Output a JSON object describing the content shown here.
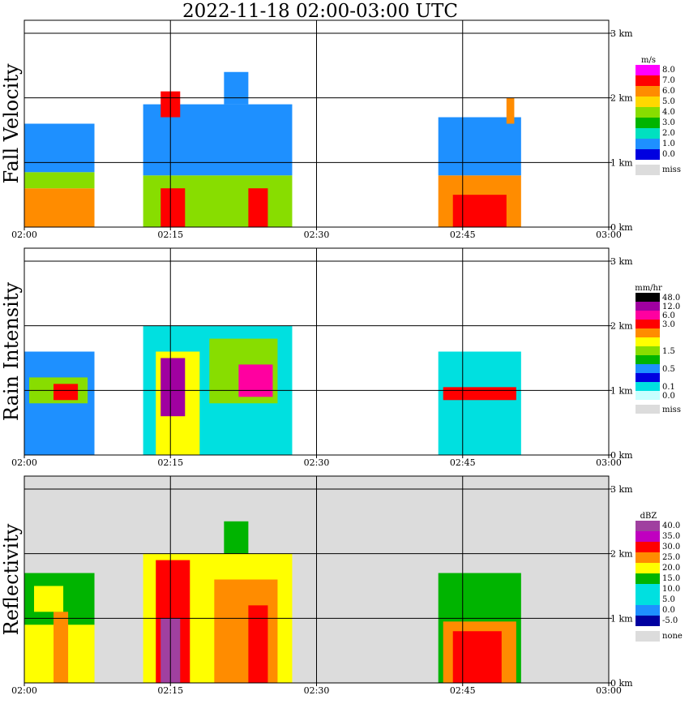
{
  "title": "2022-11-18   02:00-03:00 UTC",
  "chart_data": [
    {
      "type": "heatmap",
      "ylabel": "Fall Velocity",
      "unit": "m/s",
      "x_ticks": [
        "02:00",
        "02:15",
        "02:30",
        "02:45",
        "03:00"
      ],
      "y_ticks": [
        "0 km",
        "1 km",
        "2 km",
        "3 km"
      ],
      "xlim_minutes": [
        0,
        60
      ],
      "ylim_km": [
        0,
        3.2
      ],
      "missing_color": "#dcdcdc",
      "background": "#ffffff",
      "legend": [
        {
          "label": "8.0",
          "color": "#ff00ff"
        },
        {
          "label": "7.0",
          "color": "#ff0000"
        },
        {
          "label": "6.0",
          "color": "#ff8c00"
        },
        {
          "label": "5.0",
          "color": "#ffd800"
        },
        {
          "label": "4.0",
          "color": "#88dd00"
        },
        {
          "label": "3.0",
          "color": "#00b400"
        },
        {
          "label": "2.0",
          "color": "#00e0c0"
        },
        {
          "label": "1.0",
          "color": "#1e90ff"
        },
        {
          "label": "0.0",
          "color": "#0000e0"
        },
        {
          "label": "miss",
          "color": "#dcdcdc"
        }
      ],
      "regions": [
        {
          "t0": 0,
          "t1": 7.2,
          "z0": 0.0,
          "z1": 0.6,
          "color": "#ff8c00"
        },
        {
          "t0": 0,
          "t1": 7.2,
          "z0": 0.6,
          "z1": 0.85,
          "color": "#88dd00"
        },
        {
          "t0": 0,
          "t1": 7.2,
          "z0": 0.85,
          "z1": 1.6,
          "color": "#1e90ff"
        },
        {
          "t0": 12.2,
          "t1": 27.5,
          "z0": 0.0,
          "z1": 0.8,
          "color": "#88dd00"
        },
        {
          "t0": 14.0,
          "t1": 16.5,
          "z0": 0.0,
          "z1": 0.6,
          "color": "#ff0000"
        },
        {
          "t0": 23.0,
          "t1": 25.0,
          "z0": 0.0,
          "z1": 0.6,
          "color": "#ff0000"
        },
        {
          "t0": 12.2,
          "t1": 27.5,
          "z0": 0.8,
          "z1": 1.9,
          "color": "#1e90ff"
        },
        {
          "t0": 14.0,
          "t1": 16.0,
          "z0": 1.7,
          "z1": 2.1,
          "color": "#ff0000"
        },
        {
          "t0": 20.5,
          "t1": 23.0,
          "z0": 1.9,
          "z1": 2.4,
          "color": "#1e90ff"
        },
        {
          "t0": 42.5,
          "t1": 51.0,
          "z0": 0.0,
          "z1": 0.8,
          "color": "#ff8c00"
        },
        {
          "t0": 44.0,
          "t1": 49.5,
          "z0": 0.0,
          "z1": 0.5,
          "color": "#ff0000"
        },
        {
          "t0": 42.5,
          "t1": 51.0,
          "z0": 0.8,
          "z1": 1.7,
          "color": "#1e90ff"
        },
        {
          "t0": 49.5,
          "t1": 50.3,
          "z0": 1.6,
          "z1": 2.0,
          "color": "#ff8c00"
        }
      ]
    },
    {
      "type": "heatmap",
      "ylabel": "Rain Intensity",
      "unit": "mm/hr",
      "x_ticks": [
        "02:00",
        "02:15",
        "02:30",
        "02:45",
        "03:00"
      ],
      "y_ticks": [
        "0 km",
        "1 km",
        "2 km",
        "3 km"
      ],
      "xlim_minutes": [
        0,
        60
      ],
      "ylim_km": [
        0,
        3.2
      ],
      "missing_color": "#dcdcdc",
      "background": "#ffffff",
      "legend": [
        {
          "label": "48.0",
          "color": "#000000"
        },
        {
          "label": "12.0",
          "color": "#a000a0"
        },
        {
          "label": "6.0",
          "color": "#ff00a0"
        },
        {
          "label": "3.0",
          "color": "#ff0000"
        },
        {
          "label": "",
          "color": "#ff8c00"
        },
        {
          "label": "",
          "color": "#ffff00"
        },
        {
          "label": "1.5",
          "color": "#88dd00"
        },
        {
          "label": "",
          "color": "#00b400"
        },
        {
          "label": "0.5",
          "color": "#1e90ff"
        },
        {
          "label": "",
          "color": "#0000e0"
        },
        {
          "label": "0.1",
          "color": "#00e0e0"
        },
        {
          "label": "0.0",
          "color": "#c8ffff"
        },
        {
          "label": "miss",
          "color": "#dcdcdc"
        }
      ],
      "regions": [
        {
          "t0": 0,
          "t1": 7.2,
          "z0": 0.0,
          "z1": 1.6,
          "color": "#1e90ff"
        },
        {
          "t0": 0.5,
          "t1": 6.5,
          "z0": 0.8,
          "z1": 1.2,
          "color": "#88dd00"
        },
        {
          "t0": 3.0,
          "t1": 5.5,
          "z0": 0.85,
          "z1": 1.1,
          "color": "#ff0000"
        },
        {
          "t0": 12.2,
          "t1": 27.5,
          "z0": 0.0,
          "z1": 2.0,
          "color": "#00e0e0"
        },
        {
          "t0": 13.5,
          "t1": 18.0,
          "z0": 0.0,
          "z1": 1.6,
          "color": "#ffff00"
        },
        {
          "t0": 14.0,
          "t1": 16.5,
          "z0": 0.6,
          "z1": 1.5,
          "color": "#a000a0"
        },
        {
          "t0": 19.0,
          "t1": 26.0,
          "z0": 0.8,
          "z1": 1.8,
          "color": "#88dd00"
        },
        {
          "t0": 22.0,
          "t1": 25.5,
          "z0": 0.9,
          "z1": 1.4,
          "color": "#ff00a0"
        },
        {
          "t0": 42.5,
          "t1": 51.0,
          "z0": 0.0,
          "z1": 1.6,
          "color": "#00e0e0"
        },
        {
          "t0": 43.0,
          "t1": 50.5,
          "z0": 0.85,
          "z1": 1.05,
          "color": "#ff0000"
        }
      ]
    },
    {
      "type": "heatmap",
      "ylabel": "Reflectivity",
      "unit": "dBZ",
      "x_ticks": [
        "02:00",
        "02:15",
        "02:30",
        "02:45",
        "03:00"
      ],
      "y_ticks": [
        "0 km",
        "1 km",
        "2 km",
        "3 km"
      ],
      "xlim_minutes": [
        0,
        60
      ],
      "ylim_km": [
        0,
        3.2
      ],
      "missing_color": "#dcdcdc",
      "background": "#dcdcdc",
      "legend": [
        {
          "label": "40.0",
          "color": "#a040a0"
        },
        {
          "label": "35.0",
          "color": "#c000c0"
        },
        {
          "label": "30.0",
          "color": "#ff0000"
        },
        {
          "label": "25.0",
          "color": "#ff8c00"
        },
        {
          "label": "20.0",
          "color": "#ffff00"
        },
        {
          "label": "15.0",
          "color": "#00b400"
        },
        {
          "label": "10.0",
          "color": "#00e0e0"
        },
        {
          "label": "5.0",
          "color": "#00e0e0"
        },
        {
          "label": "0.0",
          "color": "#1e90ff"
        },
        {
          "label": "-5.0",
          "color": "#0000a0"
        },
        {
          "label": "none",
          "color": "#dcdcdc"
        }
      ],
      "regions": [
        {
          "t0": 0,
          "t1": 7.2,
          "z0": 0.0,
          "z1": 1.7,
          "color": "#00b400"
        },
        {
          "t0": 0,
          "t1": 7.2,
          "z0": 0.0,
          "z1": 0.9,
          "color": "#ffff00"
        },
        {
          "t0": 3.0,
          "t1": 4.5,
          "z0": 0.0,
          "z1": 1.1,
          "color": "#ff8c00"
        },
        {
          "t0": 1.0,
          "t1": 4.0,
          "z0": 1.1,
          "z1": 1.5,
          "color": "#ffff00"
        },
        {
          "t0": 12.2,
          "t1": 27.5,
          "z0": 0.0,
          "z1": 2.0,
          "color": "#ffff00"
        },
        {
          "t0": 13.5,
          "t1": 17.0,
          "z0": 0.0,
          "z1": 1.9,
          "color": "#ff0000"
        },
        {
          "t0": 14.0,
          "t1": 16.0,
          "z0": 0.0,
          "z1": 1.0,
          "color": "#a040a0"
        },
        {
          "t0": 19.5,
          "t1": 26.0,
          "z0": 0.0,
          "z1": 1.6,
          "color": "#ff8c00"
        },
        {
          "t0": 23.0,
          "t1": 25.0,
          "z0": 0.0,
          "z1": 1.2,
          "color": "#ff0000"
        },
        {
          "t0": 20.5,
          "t1": 23.0,
          "z0": 2.0,
          "z1": 2.5,
          "color": "#00b400"
        },
        {
          "t0": 42.5,
          "t1": 51.0,
          "z0": 0.0,
          "z1": 1.7,
          "color": "#00b400"
        },
        {
          "t0": 43.0,
          "t1": 50.5,
          "z0": 0.0,
          "z1": 0.95,
          "color": "#ff8c00"
        },
        {
          "t0": 44.0,
          "t1": 49.0,
          "z0": 0.0,
          "z1": 0.8,
          "color": "#ff0000"
        }
      ]
    }
  ]
}
